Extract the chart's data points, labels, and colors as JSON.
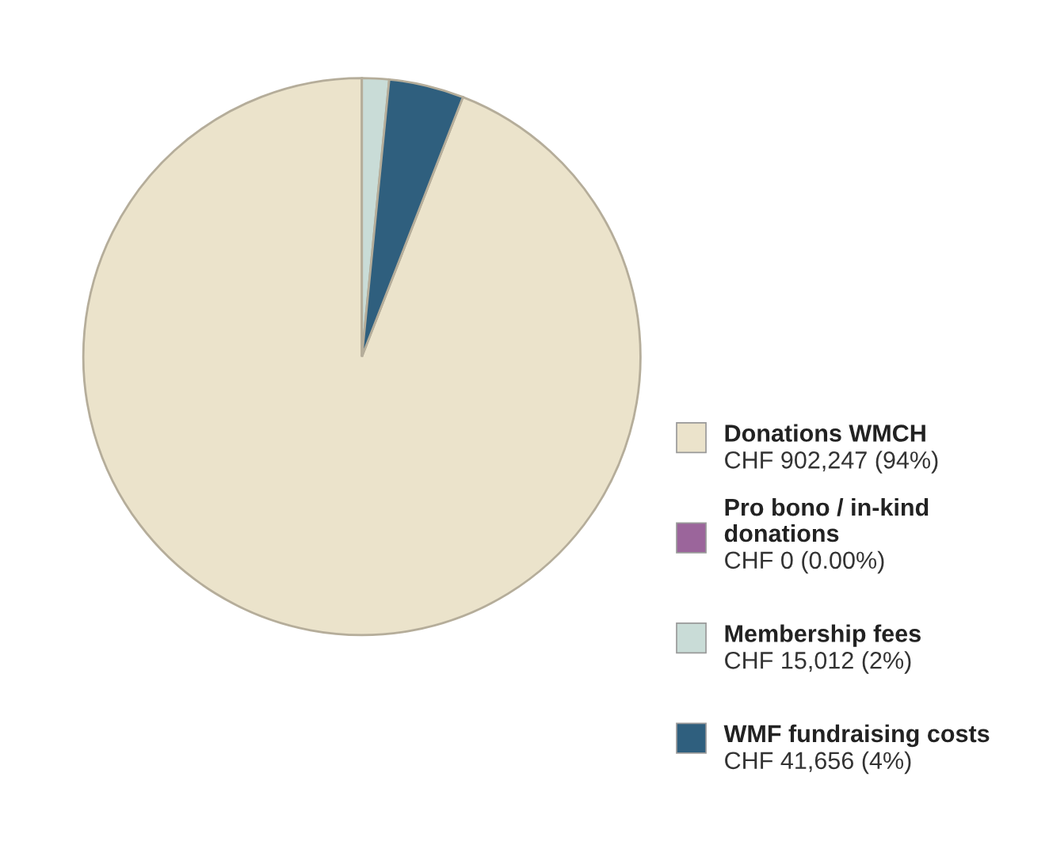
{
  "chart_data": {
    "type": "pie",
    "categories": [
      "Donations WMCH",
      "Pro bono / in-kind donations",
      "Membership fees",
      "WMF fundraising costs"
    ],
    "values": [
      902247,
      0,
      15012,
      41656
    ],
    "value_labels": [
      "CHF 902,247 (94%)",
      "CHF 0 (0.00%)",
      "CHF 15,012 (2%)",
      "CHF 41,656 (4%)"
    ],
    "colors": [
      "#ebe3cb",
      "#9b659b",
      "#c9dcd7",
      "#2f5f7e"
    ],
    "legend": "bottom right"
  }
}
